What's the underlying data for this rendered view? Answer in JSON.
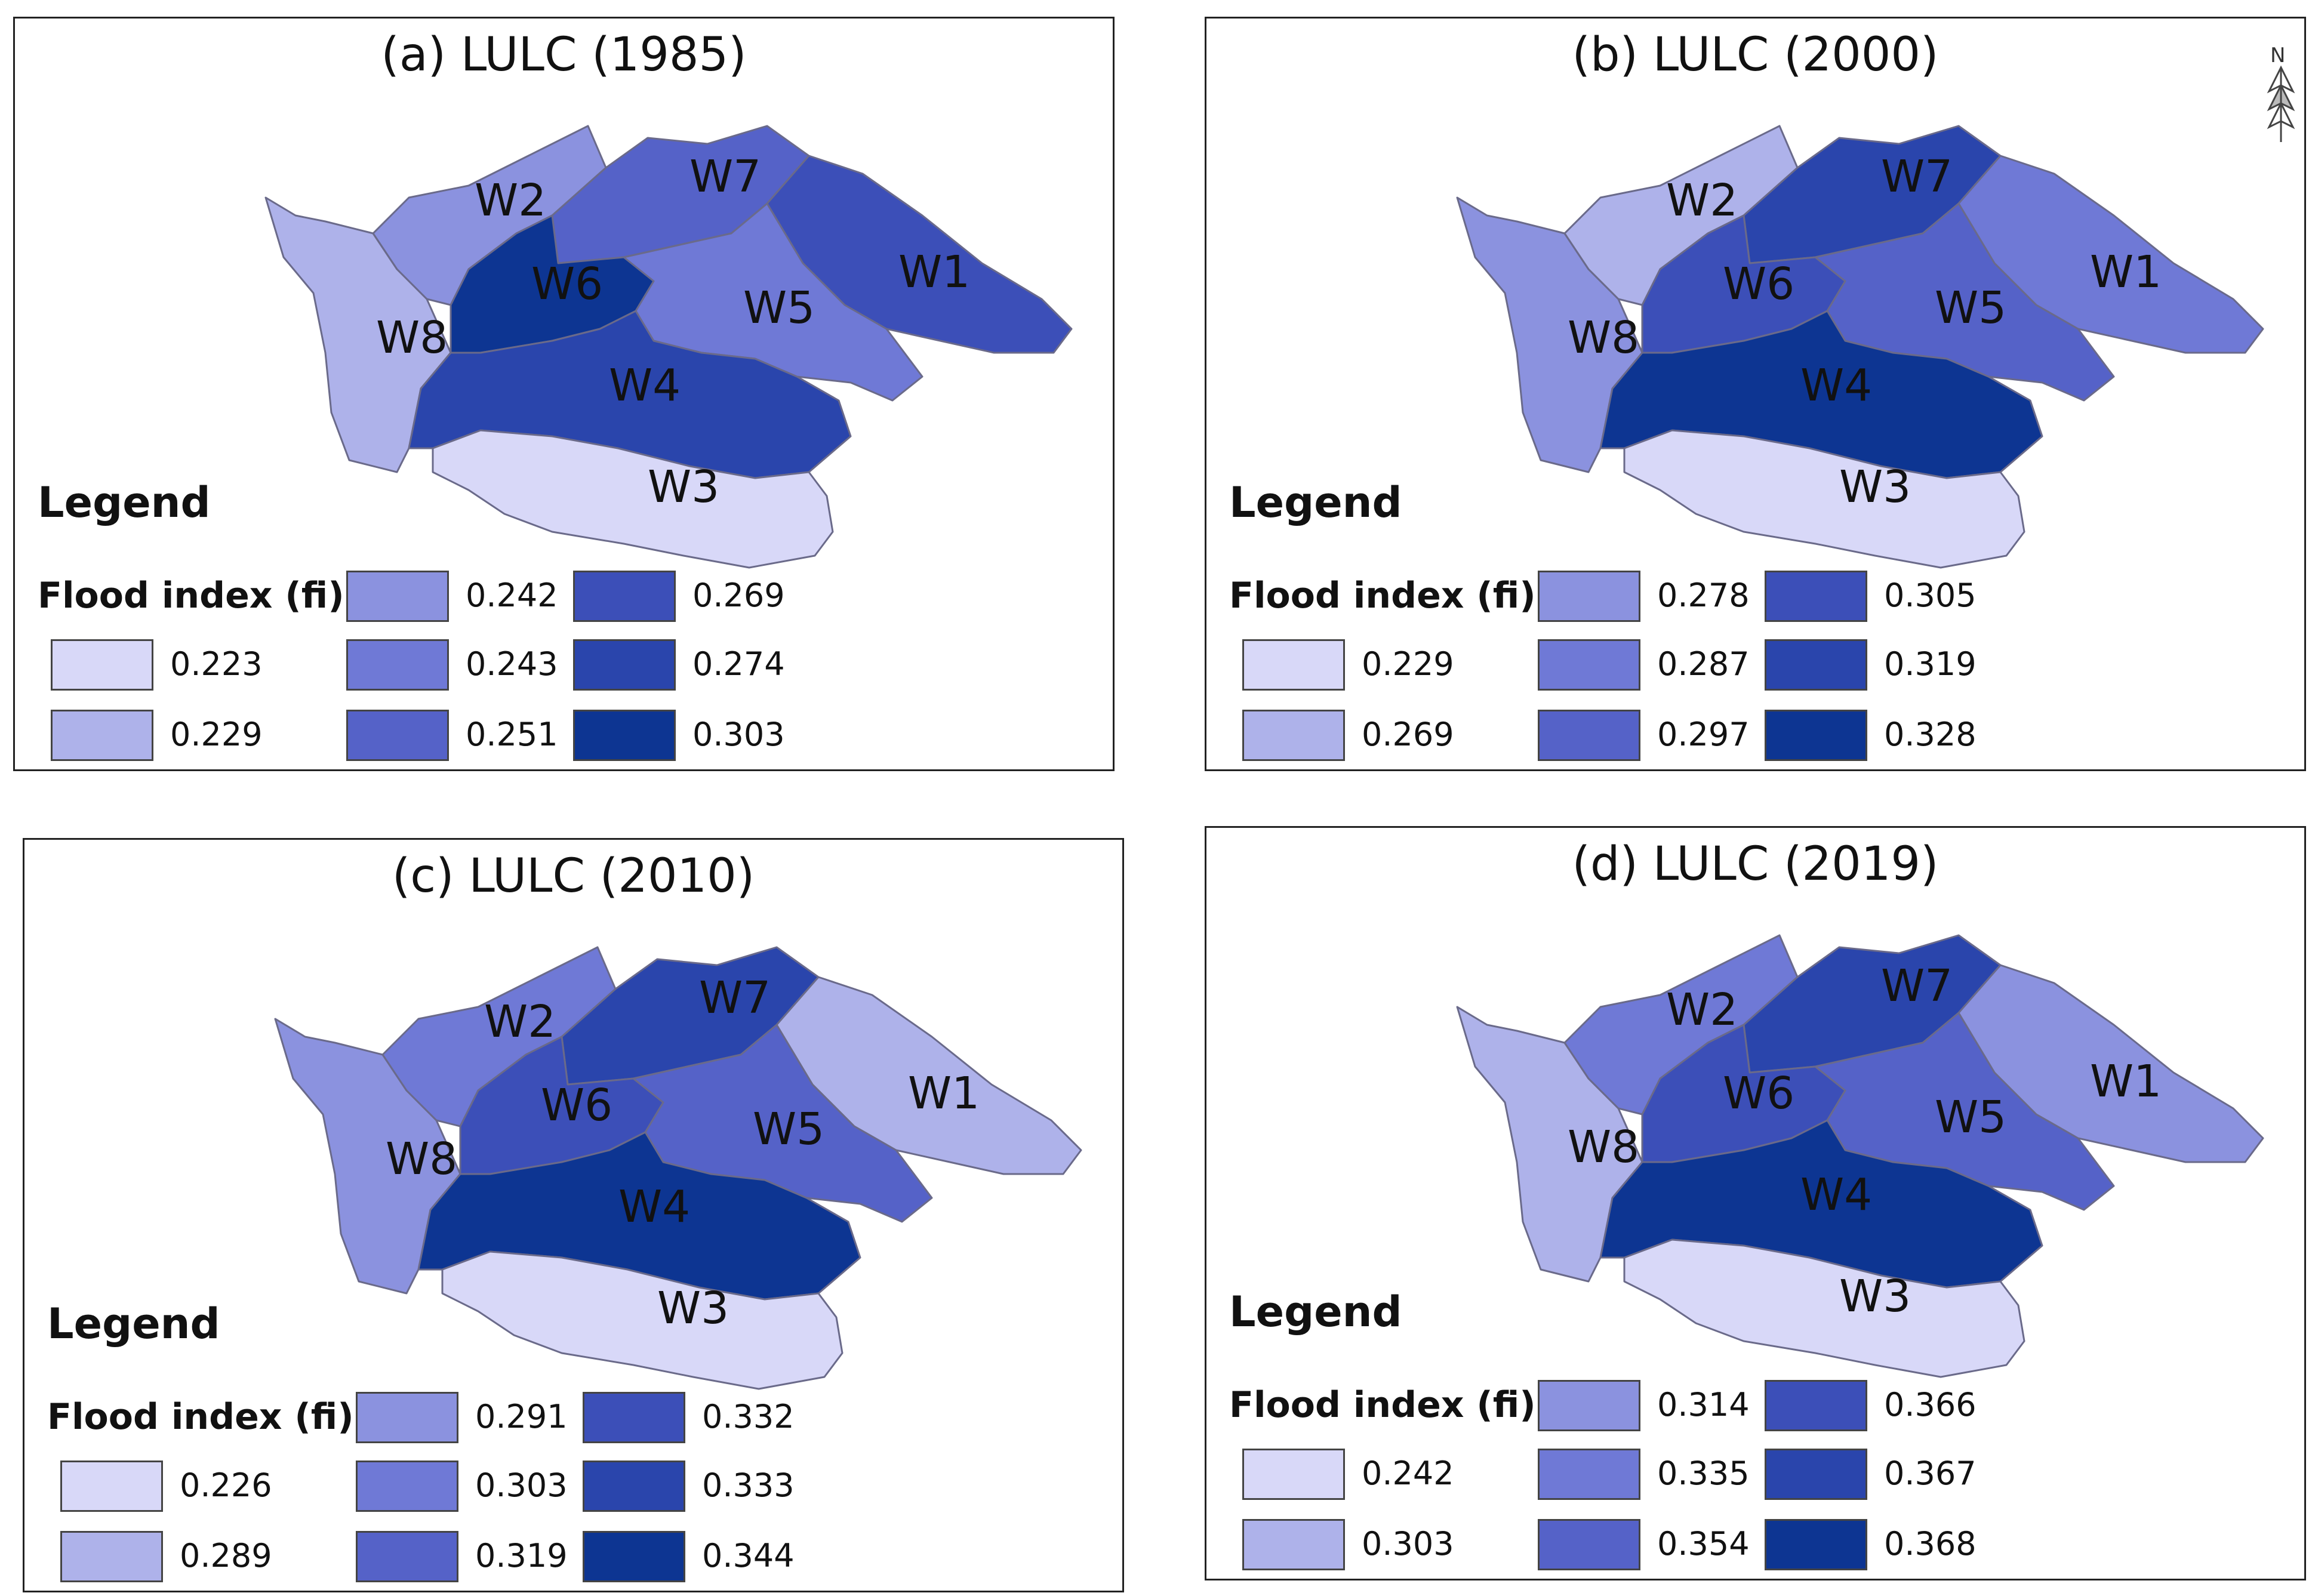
{
  "panels": [
    {
      "id": "a",
      "title": "(a) LULC (1985)",
      "legend_title": "Legend",
      "legend_subtitle": "Flood index (fi)",
      "legend": [
        {
          "value": "0.223",
          "color": "#d8d8f8"
        },
        {
          "value": "0.229",
          "color": "#aeb2ea"
        },
        {
          "value": "0.242",
          "color": "#8b92df"
        },
        {
          "value": "0.243",
          "color": "#6f79d6"
        },
        {
          "value": "0.251",
          "color": "#5562c8"
        },
        {
          "value": "0.269",
          "color": "#3c4fb8"
        },
        {
          "value": "0.274",
          "color": "#2a45ac"
        },
        {
          "value": "0.303",
          "color": "#0d3592"
        }
      ],
      "watersheds": {
        "W1": {
          "label": "W1",
          "fi": "0.269"
        },
        "W2": {
          "label": "W2",
          "fi": "0.242"
        },
        "W3": {
          "label": "W3",
          "fi": "0.223"
        },
        "W4": {
          "label": "W4",
          "fi": "0.274"
        },
        "W5": {
          "label": "W5",
          "fi": "0.243"
        },
        "W6": {
          "label": "W6",
          "fi": "0.303"
        },
        "W7": {
          "label": "W7",
          "fi": "0.251"
        },
        "W8": {
          "label": "W8",
          "fi": "0.229"
        }
      }
    },
    {
      "id": "b",
      "title": "(b) LULC (2000)",
      "legend_title": "Legend",
      "legend_subtitle": "Flood index (fi)",
      "north_arrow": "N",
      "legend": [
        {
          "value": "0.229",
          "color": "#d8d8f8"
        },
        {
          "value": "0.269",
          "color": "#aeb2ea"
        },
        {
          "value": "0.278",
          "color": "#8b92df"
        },
        {
          "value": "0.287",
          "color": "#6f79d6"
        },
        {
          "value": "0.297",
          "color": "#5562c8"
        },
        {
          "value": "0.305",
          "color": "#3c4fb8"
        },
        {
          "value": "0.319",
          "color": "#2a45ac"
        },
        {
          "value": "0.328",
          "color": "#0d3592"
        }
      ],
      "watersheds": {
        "W1": {
          "label": "W1",
          "fi": "0.287"
        },
        "W2": {
          "label": "W2",
          "fi": "0.269"
        },
        "W3": {
          "label": "W3",
          "fi": "0.229"
        },
        "W4": {
          "label": "W4",
          "fi": "0.328"
        },
        "W5": {
          "label": "W5",
          "fi": "0.297"
        },
        "W6": {
          "label": "W6",
          "fi": "0.305"
        },
        "W7": {
          "label": "W7",
          "fi": "0.319"
        },
        "W8": {
          "label": "W8",
          "fi": "0.278"
        }
      }
    },
    {
      "id": "c",
      "title": "(c) LULC (2010)",
      "legend_title": "Legend",
      "legend_subtitle": "Flood index (fi)",
      "legend": [
        {
          "value": "0.226",
          "color": "#d8d8f8"
        },
        {
          "value": "0.289",
          "color": "#aeb2ea"
        },
        {
          "value": "0.291",
          "color": "#8b92df"
        },
        {
          "value": "0.303",
          "color": "#6f79d6"
        },
        {
          "value": "0.319",
          "color": "#5562c8"
        },
        {
          "value": "0.332",
          "color": "#3c4fb8"
        },
        {
          "value": "0.333",
          "color": "#2a45ac"
        },
        {
          "value": "0.344",
          "color": "#0d3592"
        }
      ],
      "watersheds": {
        "W1": {
          "label": "W1",
          "fi": "0.289"
        },
        "W2": {
          "label": "W2",
          "fi": "0.303"
        },
        "W3": {
          "label": "W3",
          "fi": "0.226"
        },
        "W4": {
          "label": "W4",
          "fi": "0.344"
        },
        "W5": {
          "label": "W5",
          "fi": "0.319"
        },
        "W6": {
          "label": "W6",
          "fi": "0.332"
        },
        "W7": {
          "label": "W7",
          "fi": "0.333"
        },
        "W8": {
          "label": "W8",
          "fi": "0.291"
        }
      }
    },
    {
      "id": "d",
      "title": "(d) LULC (2019)",
      "legend_title": "Legend",
      "legend_subtitle": "Flood index (fi)",
      "legend": [
        {
          "value": "0.242",
          "color": "#d8d8f8"
        },
        {
          "value": "0.303",
          "color": "#aeb2ea"
        },
        {
          "value": "0.314",
          "color": "#8b92df"
        },
        {
          "value": "0.335",
          "color": "#6f79d6"
        },
        {
          "value": "0.354",
          "color": "#5562c8"
        },
        {
          "value": "0.366",
          "color": "#3c4fb8"
        },
        {
          "value": "0.367",
          "color": "#2a45ac"
        },
        {
          "value": "0.368",
          "color": "#0d3592"
        }
      ],
      "watersheds": {
        "W1": {
          "label": "W1",
          "fi": "0.314"
        },
        "W2": {
          "label": "W2",
          "fi": "0.335"
        },
        "W3": {
          "label": "W3",
          "fi": "0.242"
        },
        "W4": {
          "label": "W4",
          "fi": "0.368"
        },
        "W5": {
          "label": "W5",
          "fi": "0.354"
        },
        "W6": {
          "label": "W6",
          "fi": "0.366"
        },
        "W7": {
          "label": "W7",
          "fi": "0.367"
        },
        "W8": {
          "label": "W8",
          "fi": "0.303"
        }
      }
    }
  ]
}
